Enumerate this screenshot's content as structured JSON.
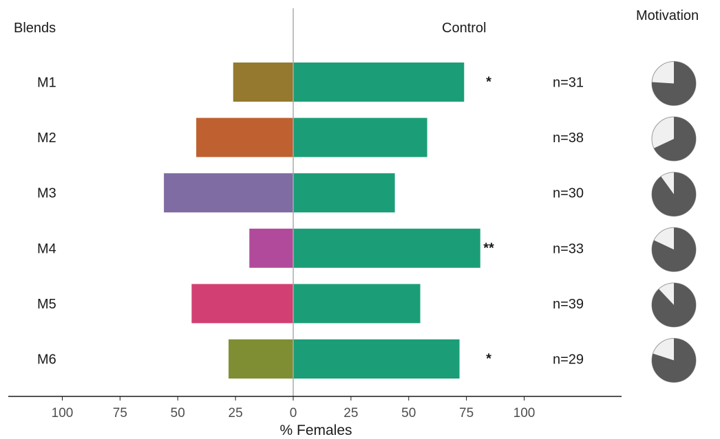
{
  "headers": {
    "blends": "Blends",
    "control": "Control",
    "motivation": "Motivation"
  },
  "chart_data": {
    "type": "bar",
    "orientation": "horizontal-diverging",
    "xlabel": "% Females",
    "x_ticks": [
      "100",
      "75",
      "50",
      "25",
      "0",
      "25",
      "50",
      "75",
      "100"
    ],
    "xlim": [
      -100,
      100
    ],
    "grid": false,
    "rows": [
      {
        "label": "M1",
        "blend": 26,
        "control": 74,
        "sig": "*",
        "n": "n=31",
        "motivation": 0.76,
        "color": "#94792e"
      },
      {
        "label": "M2",
        "blend": 42,
        "control": 58,
        "sig": "",
        "n": "n=38",
        "motivation": 0.68,
        "color": "#be6030"
      },
      {
        "label": "M3",
        "blend": 56,
        "control": 44,
        "sig": "",
        "n": "n=30",
        "motivation": 0.9,
        "color": "#7e6ca3"
      },
      {
        "label": "M4",
        "blend": 19,
        "control": 81,
        "sig": "**",
        "n": "n=33",
        "motivation": 0.82,
        "color": "#b24a9c"
      },
      {
        "label": "M5",
        "blend": 44,
        "control": 55,
        "sig": "",
        "n": "n=39",
        "motivation": 0.88,
        "color": "#d23f72"
      },
      {
        "label": "M6",
        "blend": 28,
        "control": 72,
        "sig": "*",
        "n": "n=29",
        "motivation": 0.8,
        "color": "#7f8e33"
      }
    ],
    "control_color": "#1b9e77",
    "motivation_fill_color": "#595959",
    "motivation_bg_color": "#f0f0f0"
  }
}
